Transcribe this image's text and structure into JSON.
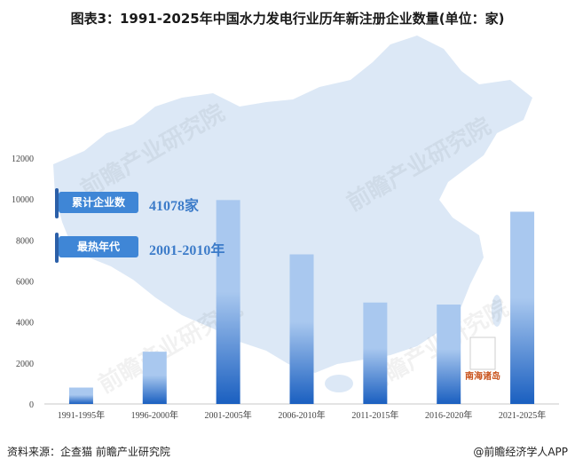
{
  "title": "图表3：1991-2025年中国水力发电行业历年新注册企业数量(单位：家)",
  "chart_data": {
    "type": "bar",
    "categories": [
      "1991-1995年",
      "1996-2000年",
      "2001-2005年",
      "2006-2010年",
      "2011-2015年",
      "2016-2020年",
      "2021-2025年"
    ],
    "values": [
      800,
      2550,
      9950,
      7300,
      4950,
      4850,
      9380
    ],
    "ylim": [
      0,
      12000
    ],
    "yticks": [
      0,
      2000,
      4000,
      6000,
      8000,
      10000,
      12000
    ],
    "grid": false,
    "bar_color_top": "#a9c8ef",
    "bar_color_bottom": "#1a5fc0"
  },
  "badges": [
    {
      "label": "累计企业数",
      "value": "41078家"
    },
    {
      "label": "最热年代",
      "value": "2001-2010年"
    }
  ],
  "map_label": "南海诸岛",
  "watermark": "前瞻产业研究院",
  "footer": {
    "source": "资料来源：企查猫 前瞻产业研究院",
    "brand": "@前瞻经济学人APP"
  },
  "colors": {
    "map": "#dce8f6",
    "badge": "#3f86d6",
    "value_text": "#3d7cc9"
  }
}
